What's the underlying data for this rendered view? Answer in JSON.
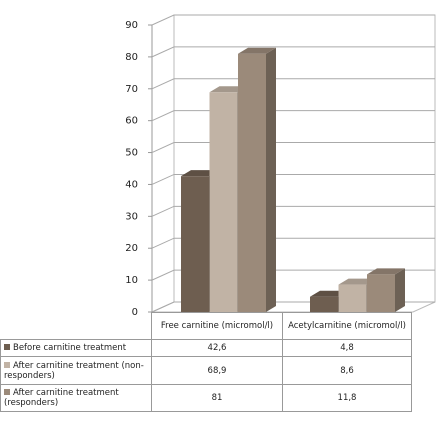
{
  "chart_data": {
    "type": "bar3d",
    "categories": [
      "Free carnitine (micromol/l)",
      "Acetylcarnitine (micromol/l)"
    ],
    "series": [
      {
        "name": "Before carnitine treatment",
        "color": "#6e5e50",
        "values": [
          42.6,
          4.8
        ],
        "value_labels": [
          "42,6",
          "4,8"
        ]
      },
      {
        "name": "After carnitine treatment (non-responders)",
        "color": "#c1b3a5",
        "values": [
          68.9,
          8.6
        ],
        "value_labels": [
          "68,9",
          "8,6"
        ]
      },
      {
        "name": "After carnitine treatment (responders)",
        "color": "#9b8a7a",
        "values": [
          81,
          11.8
        ],
        "value_labels": [
          "81",
          "11,8"
        ]
      }
    ],
    "ylim": [
      0,
      90
    ],
    "yticks": [
      0,
      10,
      20,
      30,
      40,
      50,
      60,
      70,
      80,
      90
    ],
    "grid": true
  }
}
